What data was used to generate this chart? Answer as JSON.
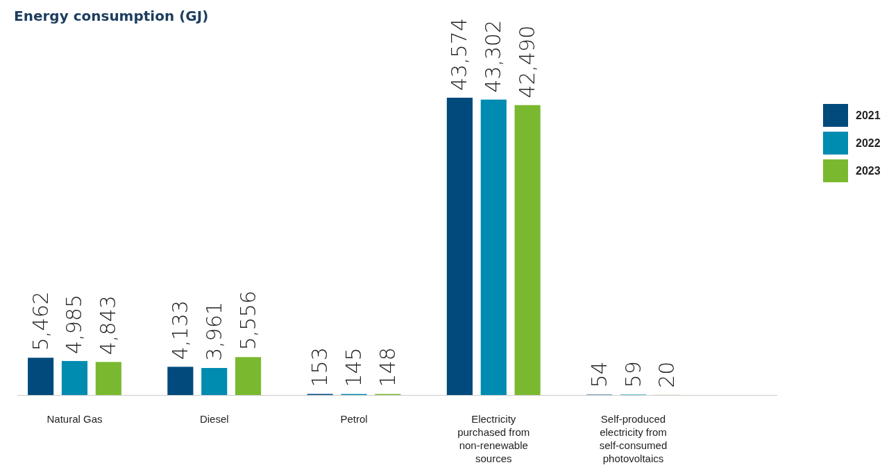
{
  "chart_data": {
    "type": "bar",
    "title": "Energy consumption  (GJ)",
    "categories": [
      "Natural Gas",
      "Diesel",
      "Petrol",
      "Electricity purchased from non-renewable sources",
      "Self-produced electricity from self-consumed photovoltaics"
    ],
    "series": [
      {
        "name": "2021",
        "color": "#004a7c",
        "values": [
          5462,
          4133,
          153,
          43574,
          54
        ],
        "value_labels": [
          "5,462",
          "4,133",
          "153",
          "43,574",
          "54"
        ]
      },
      {
        "name": "2022",
        "color": "#008bb0",
        "values": [
          4985,
          3961,
          145,
          43302,
          59
        ],
        "value_labels": [
          "4,985",
          "3,961",
          "145",
          "43,302",
          "59"
        ]
      },
      {
        "name": "2023",
        "color": "#7ab92f",
        "values": [
          4843,
          5556,
          148,
          42490,
          20
        ],
        "value_labels": [
          "4,843",
          "5,556",
          "148",
          "42,490",
          "20"
        ]
      }
    ],
    "legend": "right",
    "grid": false
  }
}
